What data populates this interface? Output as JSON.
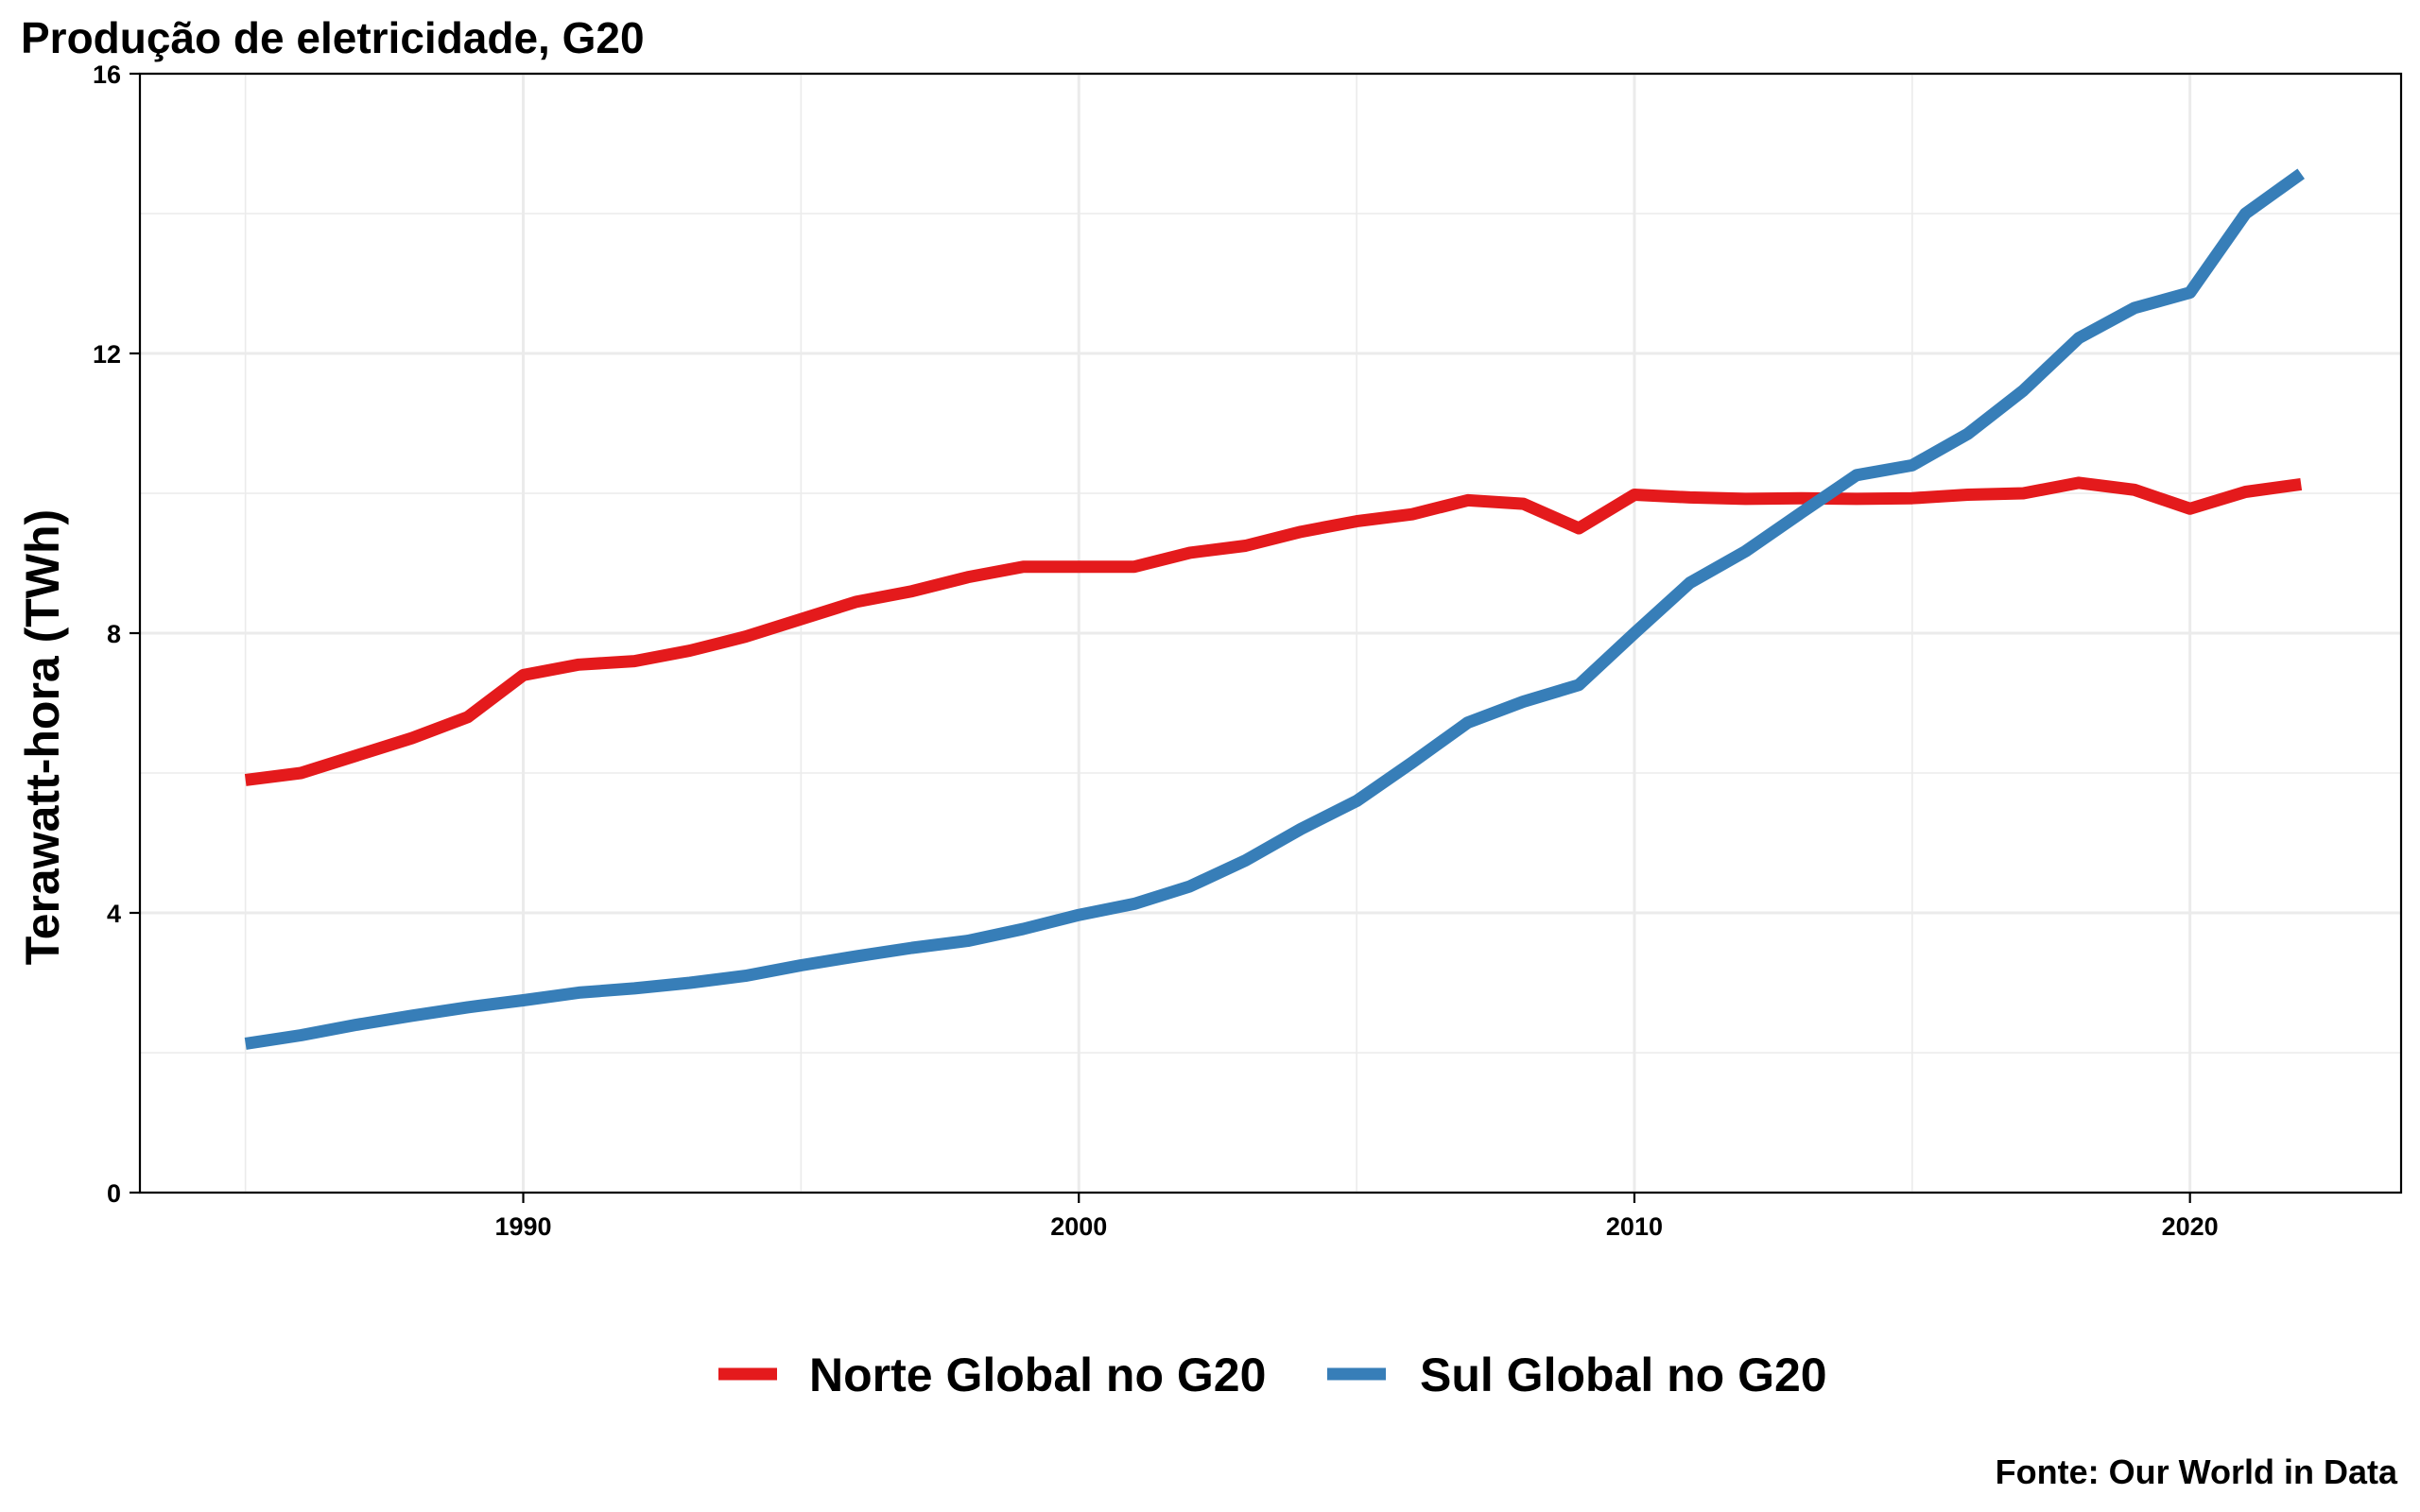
{
  "chart_data": {
    "type": "line",
    "title": "Produção de eletricidade, G20",
    "xlabel": "",
    "ylabel": "Terawatt-hora (TWh)",
    "source": "Fonte: Our World in Data",
    "xlim": [
      1983.1,
      2023.8
    ],
    "ylim": [
      0,
      16
    ],
    "x_ticks": [
      1990,
      2000,
      2010,
      2020
    ],
    "y_ticks": [
      0,
      4,
      8,
      12,
      16
    ],
    "grid": true,
    "legend_position": "bottom",
    "x": [
      1985,
      1986,
      1987,
      1988,
      1989,
      1990,
      1991,
      1992,
      1993,
      1994,
      1995,
      1996,
      1997,
      1998,
      1999,
      2000,
      2001,
      2002,
      2003,
      2004,
      2005,
      2006,
      2007,
      2008,
      2009,
      2010,
      2011,
      2012,
      2013,
      2014,
      2015,
      2016,
      2017,
      2018,
      2019,
      2020,
      2021,
      2022
    ],
    "series": [
      {
        "name": "Norte Global no G20",
        "color": "#e41a1c",
        "values": [
          5.9,
          6.0,
          6.25,
          6.5,
          6.8,
          7.4,
          7.55,
          7.6,
          7.75,
          7.95,
          8.2,
          8.45,
          8.6,
          8.8,
          8.95,
          8.95,
          8.95,
          9.15,
          9.25,
          9.45,
          9.6,
          9.7,
          9.9,
          9.85,
          9.5,
          9.98,
          9.94,
          9.92,
          9.93,
          9.92,
          9.93,
          9.98,
          10.0,
          10.15,
          10.05,
          9.78,
          10.02,
          10.13
        ]
      },
      {
        "name": "Sul Global no G20",
        "color": "#377eb8",
        "values": [
          2.13,
          2.25,
          2.4,
          2.53,
          2.65,
          2.75,
          2.86,
          2.92,
          3.0,
          3.1,
          3.25,
          3.38,
          3.5,
          3.6,
          3.77,
          3.97,
          4.13,
          4.38,
          4.75,
          5.2,
          5.6,
          6.15,
          6.72,
          7.02,
          7.26,
          8.0,
          8.72,
          9.17,
          9.72,
          10.26,
          10.4,
          10.85,
          11.47,
          12.22,
          12.65,
          12.87,
          14.0,
          14.57
        ]
      }
    ]
  }
}
